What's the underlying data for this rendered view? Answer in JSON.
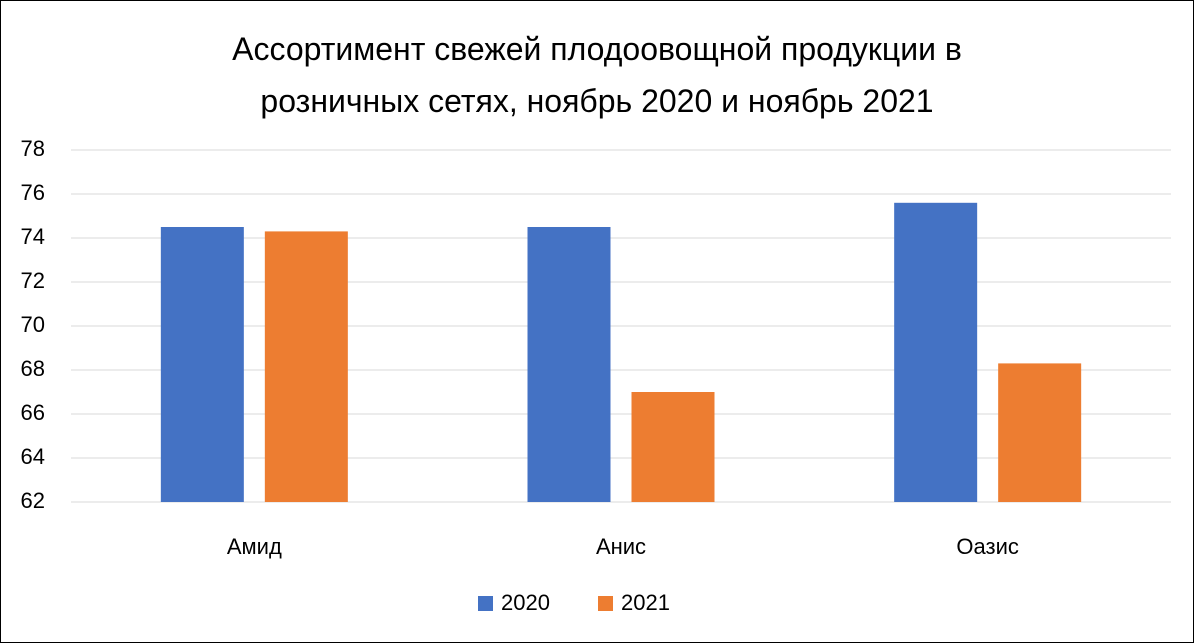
{
  "chart_data": {
    "type": "bar",
    "title": "Ассортимент свежей плодоовощной продукции в розничных сетях, ноябрь 2020 и ноябрь 2021",
    "categories": [
      "Амид",
      "Анис",
      "Оазис"
    ],
    "series": [
      {
        "name": "2020",
        "color": "#4472c4",
        "values": [
          74.5,
          74.5,
          75.6
        ]
      },
      {
        "name": "2021",
        "color": "#ed7d31",
        "values": [
          74.3,
          67.0,
          68.3
        ]
      }
    ],
    "ylim": [
      62,
      78
    ],
    "yticks": [
      62,
      64,
      66,
      68,
      70,
      72,
      74,
      76,
      78
    ],
    "grid": true
  }
}
